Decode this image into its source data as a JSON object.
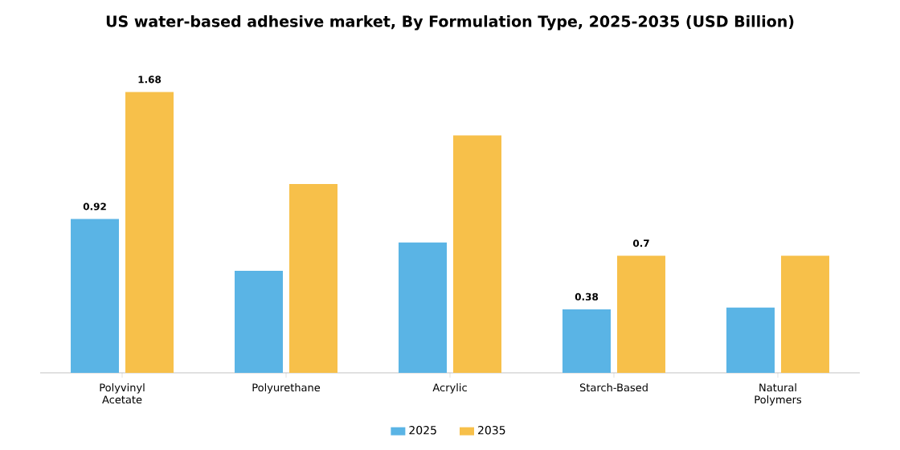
{
  "chart_data": {
    "type": "bar",
    "title": "US water-based adhesive market, By Formulation Type, 2025-2035 (USD Billion)",
    "categories": [
      "Polyvinyl Acetate",
      "Polyurethane",
      "Acrylic",
      "Starch-Based",
      "Natural Polymers"
    ],
    "series": [
      {
        "name": "2025",
        "color": "#5ab4e5",
        "values": [
          0.92,
          0.61,
          0.78,
          0.38,
          0.39
        ],
        "value_labels": [
          "0.92",
          null,
          null,
          "0.38",
          null
        ]
      },
      {
        "name": "2035",
        "color": "#f7c04a",
        "values": [
          1.68,
          1.13,
          1.42,
          0.7,
          0.7
        ],
        "value_labels": [
          "1.68",
          null,
          null,
          "0.7",
          null
        ]
      }
    ],
    "legend": "bottom"
  }
}
